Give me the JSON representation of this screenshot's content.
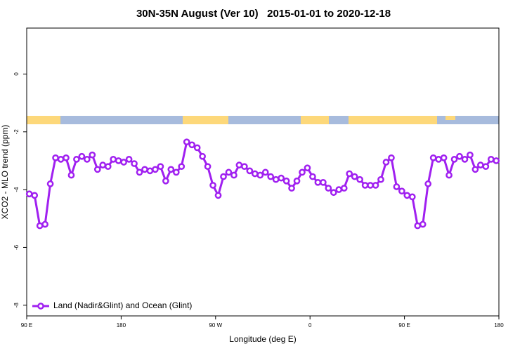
{
  "chart_data": {
    "type": "line",
    "title": "30N-35N August (Ver 10)   2015-01-01 to 2020-12-18",
    "x_label": "Longitude (deg E)",
    "y_label": "XCO2 - MLO trend (ppm)",
    "x": [
      92.5,
      97.5,
      102.5,
      107.5,
      112.5,
      117.5,
      122.5,
      127.5,
      132.5,
      137.5,
      142.5,
      147.5,
      152.5,
      157.5,
      162.5,
      167.5,
      172.5,
      177.5,
      182.5,
      187.5,
      192.5,
      197.5,
      202.5,
      207.5,
      212.5,
      217.5,
      222.5,
      227.5,
      232.5,
      237.5,
      242.5,
      247.5,
      252.5,
      257.5,
      262.5,
      267.5,
      272.5,
      277.5,
      282.5,
      287.5,
      292.5,
      297.5,
      302.5,
      307.5,
      312.5,
      317.5,
      322.5,
      327.5,
      332.5,
      337.5,
      342.5,
      347.5,
      352.5,
      357.5,
      362.5,
      367.5,
      372.5,
      377.5,
      382.5,
      387.5,
      392.5,
      397.5,
      402.5,
      407.5,
      412.5,
      417.5,
      422.5,
      427.5,
      432.5,
      437.5,
      442.5,
      447.5,
      452.5,
      457.5,
      462.5,
      467.5,
      472.5,
      477.5,
      482.5,
      487.5,
      492.5,
      497.5,
      502.5,
      507.5,
      512.5,
      517.5,
      522.5,
      527.5,
      532.5,
      537.5
    ],
    "series": [
      {
        "name": "Land (Nadir&Glint) and Ocean (Glint)",
        "color": "#a020f0",
        "values": [
          -4.15,
          -4.2,
          -5.25,
          -5.2,
          -3.8,
          -2.9,
          -2.95,
          -2.9,
          -3.5,
          -2.95,
          -2.85,
          -2.95,
          -2.8,
          -3.3,
          -3.15,
          -3.2,
          -2.95,
          -3.0,
          -3.05,
          -2.95,
          -3.1,
          -3.4,
          -3.3,
          -3.35,
          -3.3,
          -3.2,
          -3.7,
          -3.3,
          -3.4,
          -3.2,
          -2.35,
          -2.45,
          -2.55,
          -2.85,
          -3.2,
          -3.85,
          -4.2,
          -3.55,
          -3.4,
          -3.5,
          -3.15,
          -3.2,
          -3.35,
          -3.45,
          -3.5,
          -3.4,
          -3.55,
          -3.65,
          -3.6,
          -3.7,
          -3.95,
          -3.7,
          -3.4,
          -3.25,
          -3.55,
          -3.75,
          -3.75,
          -3.95,
          -4.1,
          -4.0,
          -3.95,
          -3.45,
          -3.55,
          -3.65,
          -3.85,
          -3.85,
          -3.85,
          -3.65,
          -3.05,
          -2.9,
          -3.9,
          -4.05,
          -4.2,
          -4.25,
          -5.25,
          -5.2,
          -3.8,
          -2.9,
          -2.95,
          -2.9,
          -3.5,
          -2.95,
          -2.85,
          -2.95,
          -2.8,
          -3.3,
          -3.15,
          -3.2,
          -2.95,
          -3.0
        ]
      }
    ],
    "xlim": [
      90,
      540
    ],
    "xticks": [
      {
        "value": 90,
        "label": "90 E"
      },
      180,
      {
        "value": 270,
        "label": "90 W"
      },
      {
        "value": 360,
        "label": "0"
      },
      {
        "value": 450,
        "label": "90 E"
      },
      {
        "value": 540,
        "label": "180"
      }
    ],
    "ylim": [
      -8.37,
      1.59
    ],
    "yticks": [
      0,
      -2,
      -4,
      -6,
      -8
    ],
    "legend": "bottomleft"
  }
}
